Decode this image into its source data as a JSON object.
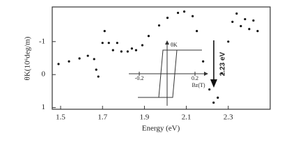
{
  "chart_data": [
    {
      "type": "scatter",
      "x_label": "Energy (eV)",
      "y_label": "θK(10⁶deg/m)",
      "annotation": "2.23 eV",
      "color": "#111111",
      "y_inverted": true,
      "xlim": [
        1.46,
        2.5
      ],
      "xticks": [
        1.5,
        1.7,
        1.9,
        2.1,
        2.3
      ],
      "ylim": [
        -2.05,
        1.05
      ],
      "yticks": [
        -1,
        0,
        1
      ],
      "x": [
        1.49,
        1.54,
        1.59,
        1.63,
        1.66,
        1.67,
        1.68,
        1.7,
        1.71,
        1.73,
        1.75,
        1.77,
        1.79,
        1.82,
        1.84,
        1.86,
        1.89,
        1.92,
        1.97,
        2.01,
        2.06,
        2.09,
        2.13,
        2.15,
        2.18,
        2.21,
        2.23,
        2.25,
        2.27,
        2.3,
        2.32,
        2.34,
        2.36,
        2.38,
        2.4,
        2.42,
        2.44
      ],
      "values": [
        -0.32,
        -0.4,
        -0.49,
        -0.57,
        -0.47,
        -0.15,
        0.06,
        -0.96,
        -1.32,
        -0.96,
        -0.74,
        -0.96,
        -0.7,
        -0.7,
        -0.79,
        -0.74,
        -0.89,
        -1.17,
        -1.49,
        -1.72,
        -1.87,
        -1.91,
        -1.77,
        -1.32,
        -0.4,
        0.45,
        0.85,
        0.7,
        -0.04,
        -1.0,
        -1.6,
        -1.85,
        -1.47,
        -1.68,
        -1.38,
        -1.64,
        -1.32
      ]
    },
    {
      "type": "line",
      "x_label": "Bz(T)",
      "y_label": "θK",
      "color": "#333333",
      "xlim": [
        -0.275,
        0.275
      ],
      "xticks": [
        -0.2,
        0.2
      ],
      "ylim": [
        -1.5,
        1.5
      ],
      "x": [
        -0.21,
        0.04,
        0.07,
        0.25,
        -0.03,
        -0.06,
        -0.21
      ],
      "values": [
        -1,
        -1,
        1,
        1,
        1,
        -1,
        -1
      ]
    }
  ]
}
